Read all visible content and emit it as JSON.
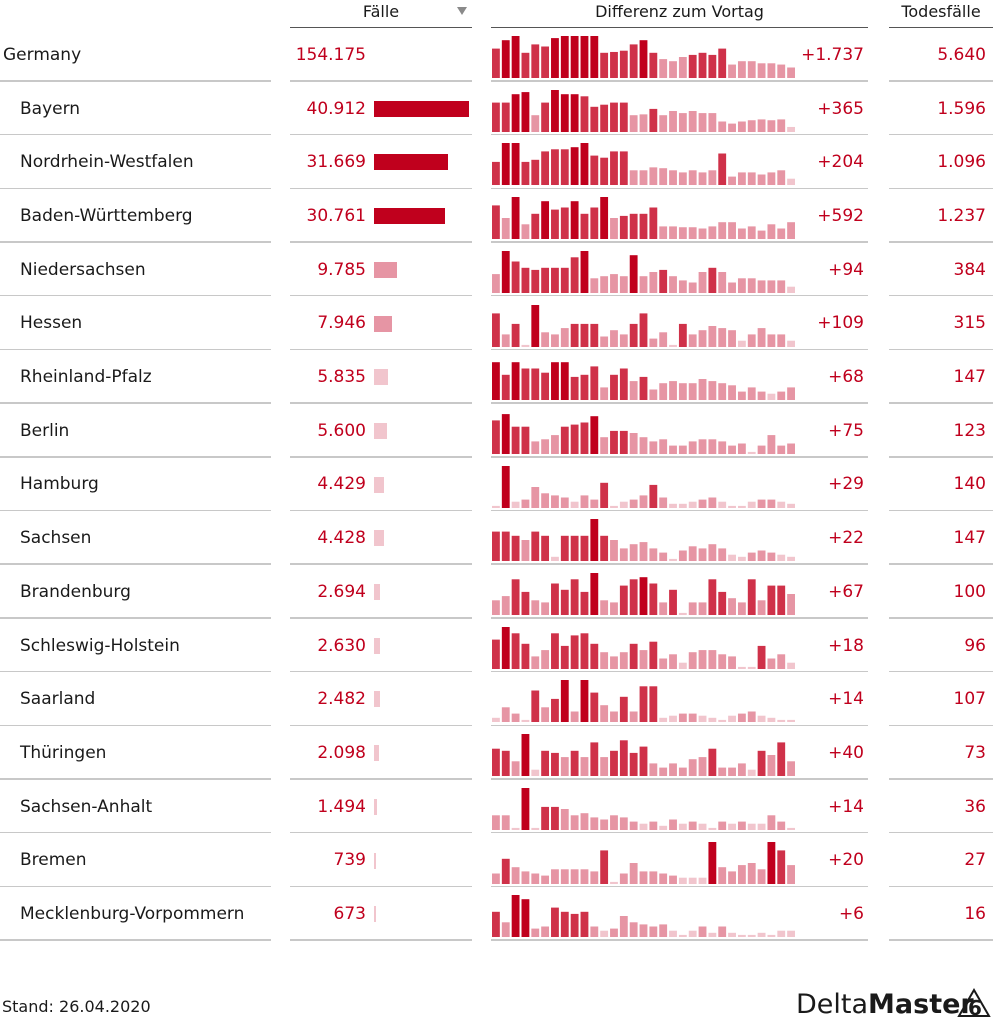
{
  "headers": {
    "faelle": "Fälle",
    "diff": "Differenz zum Vortag",
    "todesfaelle": "Todesfälle"
  },
  "footer": {
    "stand": "Stand: 26.04.2020"
  },
  "logo": {
    "text_light": "Delta",
    "text_bold": "Master",
    "version": "6"
  },
  "colors": {
    "accent": "#c0001d",
    "bar_dark": "#c0001d",
    "bar_mid": "#cf3149",
    "bar_light": "#e695a4",
    "bar_pale": "#f1c5cd"
  },
  "chart_data": {
    "type": "table",
    "columns": [
      "",
      "Fälle",
      "Differenz zum Vortag",
      "Todesfälle"
    ],
    "max_cases": 40912,
    "rows": [
      {
        "name": "Germany",
        "total": true,
        "cases": 154175,
        "cases_label": "154.175",
        "diff_label": "+1.737",
        "deaths_label": "5.640",
        "spark": [
          0.7,
          0.9,
          1,
          0.6,
          0.8,
          0.75,
          0.95,
          1,
          1,
          1,
          1,
          0.6,
          0.62,
          0.65,
          0.8,
          0.9,
          0.6,
          0.45,
          0.4,
          0.5,
          0.55,
          0.6,
          0.55,
          0.7,
          0.32,
          0.4,
          0.4,
          0.35,
          0.35,
          0.32,
          0.25
        ]
      },
      {
        "name": "Bayern",
        "cases": 40912,
        "cases_label": "40.912",
        "diff_label": "+365",
        "deaths_label": "1.596",
        "spark": [
          0.7,
          0.7,
          0.9,
          0.95,
          0.4,
          0.7,
          1,
          0.9,
          0.9,
          0.85,
          0.6,
          0.65,
          0.7,
          0.7,
          0.4,
          0.42,
          0.55,
          0.4,
          0.5,
          0.45,
          0.5,
          0.45,
          0.45,
          0.25,
          0.2,
          0.25,
          0.28,
          0.3,
          0.28,
          0.3,
          0.12
        ]
      },
      {
        "name": "Nordrhein-Westfalen",
        "cases": 31669,
        "cases_label": "31.669",
        "diff_label": "+204",
        "deaths_label": "1.096",
        "spark": [
          0.55,
          1,
          1,
          0.55,
          0.6,
          0.8,
          0.85,
          0.85,
          0.9,
          1,
          0.7,
          0.65,
          0.8,
          0.8,
          0.35,
          0.35,
          0.42,
          0.4,
          0.35,
          0.3,
          0.35,
          0.3,
          0.35,
          0.75,
          0.2,
          0.3,
          0.3,
          0.25,
          0.3,
          0.35,
          0.15
        ]
      },
      {
        "name": "Baden-Württemberg",
        "cases": 30761,
        "cases_label": "30.761",
        "diff_label": "+592",
        "deaths_label": "1.237",
        "spark": [
          0.8,
          0.5,
          1,
          0.35,
          0.6,
          0.9,
          0.7,
          0.75,
          0.9,
          0.6,
          0.75,
          1,
          0.5,
          0.55,
          0.6,
          0.6,
          0.75,
          0.3,
          0.3,
          0.28,
          0.28,
          0.25,
          0.3,
          0.4,
          0.4,
          0.25,
          0.3,
          0.2,
          0.35,
          0.25,
          0.4
        ]
      },
      {
        "name": "Niedersachsen",
        "cases": 9785,
        "cases_label": "9.785",
        "diff_label": "+94",
        "deaths_label": "384",
        "spark": [
          0.45,
          1,
          0.75,
          0.6,
          0.55,
          0.6,
          0.6,
          0.6,
          0.85,
          1,
          0.35,
          0.4,
          0.45,
          0.4,
          0.9,
          0.4,
          0.5,
          0.55,
          0.4,
          0.3,
          0.25,
          0.5,
          0.6,
          0.5,
          0.25,
          0.35,
          0.35,
          0.3,
          0.3,
          0.3,
          0.15
        ]
      },
      {
        "name": "Hessen",
        "cases": 7946,
        "cases_label": "7.946",
        "diff_label": "+109",
        "deaths_label": "315",
        "spark": [
          0.8,
          0.3,
          0.55,
          0.05,
          1,
          0.35,
          0.3,
          0.45,
          0.55,
          0.55,
          0.55,
          0.25,
          0.4,
          0.3,
          0.55,
          0.8,
          0.2,
          0.35,
          0.05,
          0.55,
          0.3,
          0.4,
          0.5,
          0.45,
          0.4,
          0.15,
          0.3,
          0.45,
          0.3,
          0.3,
          0.15
        ]
      },
      {
        "name": "Rheinland-Pfalz",
        "cases": 5835,
        "cases_label": "5.835",
        "diff_label": "+68",
        "deaths_label": "147",
        "spark": [
          0.9,
          0.6,
          0.9,
          0.75,
          0.75,
          0.65,
          0.9,
          0.9,
          0.55,
          0.6,
          0.8,
          0.3,
          0.6,
          0.75,
          0.45,
          0.55,
          0.25,
          0.4,
          0.45,
          0.4,
          0.4,
          0.5,
          0.45,
          0.4,
          0.35,
          0.2,
          0.3,
          0.2,
          0.15,
          0.2,
          0.3
        ]
      },
      {
        "name": "Berlin",
        "cases": 5600,
        "cases_label": "5.600",
        "diff_label": "+75",
        "deaths_label": "123",
        "spark": [
          0.8,
          0.95,
          0.65,
          0.65,
          0.3,
          0.35,
          0.45,
          0.65,
          0.7,
          0.75,
          0.9,
          0.4,
          0.55,
          0.55,
          0.5,
          0.4,
          0.3,
          0.35,
          0.2,
          0.2,
          0.3,
          0.35,
          0.35,
          0.3,
          0.2,
          0.25,
          0.05,
          0.2,
          0.45,
          0.2,
          0.25
        ]
      },
      {
        "name": "Hamburg",
        "cases": 4429,
        "cases_label": "4.429",
        "diff_label": "+29",
        "deaths_label": "140",
        "spark": [
          0.05,
          1,
          0.15,
          0.2,
          0.5,
          0.35,
          0.3,
          0.25,
          0.15,
          0.3,
          0.2,
          0.6,
          0.05,
          0.15,
          0.2,
          0.3,
          0.55,
          0.25,
          0.1,
          0.1,
          0.15,
          0.2,
          0.25,
          0.15,
          0.05,
          0.05,
          0.15,
          0.2,
          0.2,
          0.15,
          0.1
        ]
      },
      {
        "name": "Sachsen",
        "cases": 4428,
        "cases_label": "4.428",
        "diff_label": "+22",
        "deaths_label": "147",
        "spark": [
          0.7,
          0.7,
          0.6,
          0.5,
          0.7,
          0.6,
          0.1,
          0.6,
          0.6,
          0.6,
          1,
          0.6,
          0.5,
          0.3,
          0.4,
          0.45,
          0.3,
          0.2,
          0.05,
          0.25,
          0.35,
          0.3,
          0.4,
          0.3,
          0.15,
          0.1,
          0.2,
          0.25,
          0.2,
          0.15,
          0.1
        ]
      },
      {
        "name": "Brandenburg",
        "cases": 2694,
        "cases_label": "2.694",
        "diff_label": "+67",
        "deaths_label": "100",
        "spark": [
          0.35,
          0.45,
          0.85,
          0.55,
          0.35,
          0.3,
          0.75,
          0.6,
          0.85,
          0.55,
          1,
          0.35,
          0.3,
          0.7,
          0.85,
          0.9,
          0.75,
          0.3,
          0.6,
          0.05,
          0.3,
          0.3,
          0.85,
          0.55,
          0.4,
          0.3,
          0.85,
          0.35,
          0.7,
          0.7,
          0.5
        ]
      },
      {
        "name": "Schleswig-Holstein",
        "cases": 2630,
        "cases_label": "2.630",
        "diff_label": "+18",
        "deaths_label": "96",
        "spark": [
          0.7,
          1,
          0.85,
          0.6,
          0.3,
          0.45,
          0.85,
          0.55,
          0.8,
          0.85,
          0.6,
          0.4,
          0.3,
          0.4,
          0.6,
          0.45,
          0.65,
          0.25,
          0.35,
          0.15,
          0.4,
          0.45,
          0.45,
          0.35,
          0.3,
          0.05,
          0.05,
          0.55,
          0.25,
          0.35,
          0.15
        ]
      },
      {
        "name": "Saarland",
        "cases": 2482,
        "cases_label": "2.482",
        "diff_label": "+14",
        "deaths_label": "107",
        "spark": [
          0.1,
          0.35,
          0.2,
          0.05,
          0.75,
          0.35,
          0.55,
          1,
          0.25,
          1,
          0.7,
          0.4,
          0.25,
          0.6,
          0.25,
          0.85,
          0.85,
          0.1,
          0.15,
          0.2,
          0.2,
          0.15,
          0.1,
          0.05,
          0.15,
          0.2,
          0.25,
          0.15,
          0.1,
          0.05,
          0.05
        ]
      },
      {
        "name": "Thüringen",
        "cases": 2098,
        "cases_label": "2.098",
        "diff_label": "+40",
        "deaths_label": "73",
        "spark": [
          0.65,
          0.6,
          0.35,
          1,
          0.15,
          0.6,
          0.55,
          0.45,
          0.6,
          0.45,
          0.8,
          0.45,
          0.6,
          0.85,
          0.55,
          0.7,
          0.3,
          0.2,
          0.3,
          0.2,
          0.4,
          0.45,
          0.65,
          0.2,
          0.2,
          0.3,
          0.15,
          0.6,
          0.5,
          0.8,
          0.35
        ]
      },
      {
        "name": "Sachsen-Anhalt",
        "cases": 1494,
        "cases_label": "1.494",
        "diff_label": "+14",
        "deaths_label": "36",
        "spark": [
          0.35,
          0.35,
          0.05,
          1,
          0.05,
          0.55,
          0.55,
          0.5,
          0.35,
          0.4,
          0.3,
          0.25,
          0.35,
          0.3,
          0.2,
          0.15,
          0.2,
          0.1,
          0.25,
          0.15,
          0.2,
          0.15,
          0.05,
          0.2,
          0.15,
          0.2,
          0.15,
          0.15,
          0.35,
          0.2,
          0.05
        ]
      },
      {
        "name": "Bremen",
        "cases": 739,
        "cases_label": "739",
        "diff_label": "+20",
        "deaths_label": "27",
        "spark": [
          0.25,
          0.6,
          0.4,
          0.3,
          0.25,
          0.2,
          0.35,
          0.35,
          0.35,
          0.35,
          0.3,
          0.8,
          0.05,
          0.25,
          0.5,
          0.3,
          0.3,
          0.25,
          0.2,
          0.15,
          0.15,
          0.15,
          1,
          0.4,
          0.3,
          0.45,
          0.5,
          0.35,
          1,
          0.8,
          0.45
        ]
      },
      {
        "name": "Mecklenburg-Vorpommern",
        "cases": 673,
        "cases_label": "673",
        "diff_label": "+6",
        "deaths_label": "16",
        "spark": [
          0.6,
          0.35,
          1,
          0.9,
          0.2,
          0.25,
          0.7,
          0.6,
          0.55,
          0.6,
          0.25,
          0.15,
          0.2,
          0.5,
          0.35,
          0.3,
          0.25,
          0.3,
          0.15,
          0.05,
          0.15,
          0.25,
          0.1,
          0.25,
          0.1,
          0.05,
          0.05,
          0.1,
          0.05,
          0.15,
          0.15
        ]
      }
    ]
  }
}
